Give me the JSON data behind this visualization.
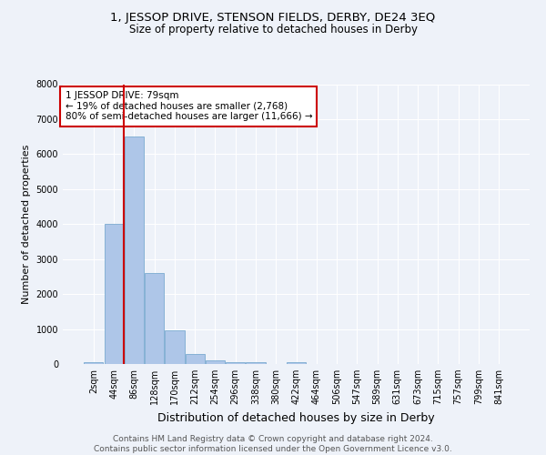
{
  "title1": "1, JESSOP DRIVE, STENSON FIELDS, DERBY, DE24 3EQ",
  "title2": "Size of property relative to detached houses in Derby",
  "xlabel": "Distribution of detached houses by size in Derby",
  "ylabel": "Number of detached properties",
  "bar_labels": [
    "2sqm",
    "44sqm",
    "86sqm",
    "128sqm",
    "170sqm",
    "212sqm",
    "254sqm",
    "296sqm",
    "338sqm",
    "380sqm",
    "422sqm",
    "464sqm",
    "506sqm",
    "547sqm",
    "589sqm",
    "631sqm",
    "673sqm",
    "715sqm",
    "757sqm",
    "799sqm",
    "841sqm"
  ],
  "bar_values": [
    50,
    4000,
    6500,
    2600,
    950,
    290,
    110,
    60,
    55,
    0,
    60,
    0,
    0,
    0,
    0,
    0,
    0,
    0,
    0,
    0,
    0
  ],
  "bar_color": "#aec6e8",
  "bar_edge_color": "#7aaad0",
  "vline_color": "#cc0000",
  "annotation_text": "1 JESSOP DRIVE: 79sqm\n← 19% of detached houses are smaller (2,768)\n80% of semi-detached houses are larger (11,666) →",
  "annotation_box_color": "#ffffff",
  "annotation_box_edge": "#cc0000",
  "ylim": [
    0,
    8000
  ],
  "yticks": [
    0,
    1000,
    2000,
    3000,
    4000,
    5000,
    6000,
    7000,
    8000
  ],
  "background_color": "#eef2f9",
  "footer": "Contains HM Land Registry data © Crown copyright and database right 2024.\nContains public sector information licensed under the Open Government Licence v3.0.",
  "title1_fontsize": 9.5,
  "title2_fontsize": 8.5,
  "xlabel_fontsize": 9,
  "ylabel_fontsize": 8,
  "tick_fontsize": 7,
  "annotation_fontsize": 7.5,
  "footer_fontsize": 6.5
}
